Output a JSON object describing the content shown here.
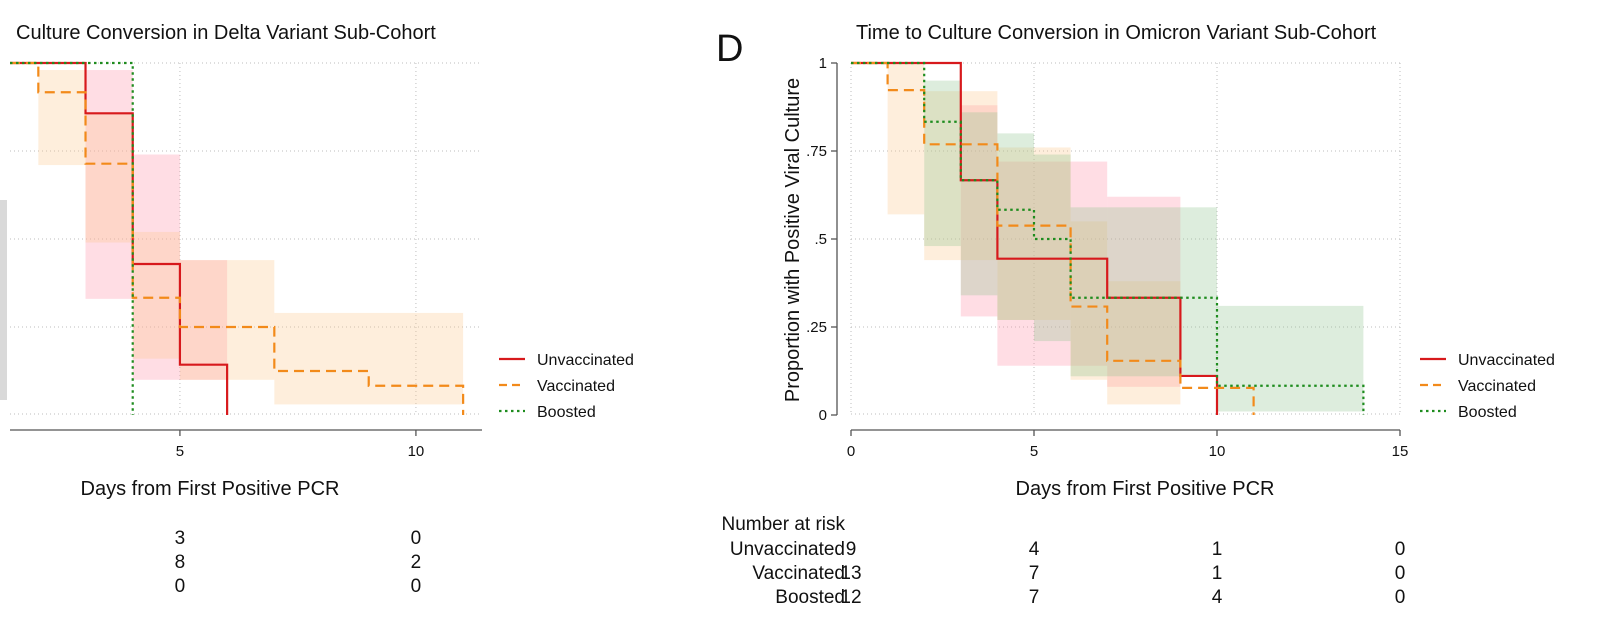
{
  "panel_letter": "D",
  "colors": {
    "unvaccinated": "#d7191c",
    "vaccinated": "#f28a1a",
    "boosted": "#1e8c1e",
    "unvaccinated_ci": "#ff8fa6",
    "vaccinated_ci": "#fbc68c",
    "boosted_ci": "#8fc48f"
  },
  "risk_table": {
    "header": "Number at risk",
    "rows": [
      {
        "name": "Unvaccinated",
        "values": [
          9,
          4,
          1,
          0
        ]
      },
      {
        "name": "Vaccinated",
        "values": [
          13,
          7,
          1,
          0
        ]
      },
      {
        "name": "Boosted",
        "values": [
          12,
          7,
          4,
          0
        ]
      }
    ]
  },
  "left_risk_values": {
    "columns_x": [
      5,
      10
    ],
    "rows": [
      [
        3,
        0
      ],
      [
        8,
        2
      ],
      [
        0,
        0
      ]
    ]
  },
  "chart_data": [
    {
      "type": "line",
      "subtype": "kaplan-meier step",
      "title": "Culture Conversion in Delta Variant Sub-Cohort",
      "xlabel": "Days from First Positive PCR",
      "ylabel": "",
      "xlim": [
        1.4,
        11.4
      ],
      "ylim": [
        0,
        1
      ],
      "xticks": [
        5,
        10
      ],
      "yticks": [],
      "grid": true,
      "legend": "right",
      "series": [
        {
          "name": "Unvaccinated",
          "style": "solid",
          "steps": [
            [
              0,
              1
            ],
            [
              3,
              0.857
            ],
            [
              4,
              0.429
            ],
            [
              5,
              0.143
            ],
            [
              6,
              0
            ]
          ],
          "ci": [
            [
              0,
              1,
              1
            ],
            [
              3,
              0.33,
              0.98
            ],
            [
              4,
              0.1,
              0.74
            ],
            [
              5,
              0.1,
              0.44
            ]
          ]
        },
        {
          "name": "Vaccinated",
          "style": "dashed",
          "steps": [
            [
              0,
              1
            ],
            [
              2,
              0.917
            ],
            [
              3,
              0.714
            ],
            [
              4,
              0.333
            ],
            [
              5,
              0.25
            ],
            [
              7,
              0.125
            ],
            [
              9,
              0.083
            ],
            [
              11,
              0
            ]
          ],
          "ci": [
            [
              0,
              1,
              1
            ],
            [
              2,
              0.71,
              0.98
            ],
            [
              3,
              0.49,
              0.86
            ],
            [
              4,
              0.16,
              0.52
            ],
            [
              5,
              0.1,
              0.44
            ],
            [
              7,
              0.03,
              0.29
            ],
            [
              9,
              0.03,
              0.29
            ]
          ]
        },
        {
          "name": "Boosted",
          "style": "dotted",
          "steps": [
            [
              0,
              1
            ],
            [
              4,
              0
            ]
          ],
          "ci": []
        }
      ]
    },
    {
      "type": "line",
      "subtype": "kaplan-meier step",
      "title": "Time to Culture Conversion in Omicron Variant Sub-Cohort",
      "xlabel": "Days from First Positive PCR",
      "ylabel": "Proportion with Positive Viral Culture",
      "xlim": [
        0,
        15
      ],
      "ylim": [
        0,
        1
      ],
      "xticks": [
        0,
        5,
        10,
        15
      ],
      "yticks": [
        {
          "value": 0,
          "label": "0"
        },
        {
          "value": 0.25,
          "label": ".25"
        },
        {
          "value": 0.5,
          "label": ".5"
        },
        {
          "value": 0.75,
          "label": ".75"
        },
        {
          "value": 1,
          "label": "1"
        }
      ],
      "grid": true,
      "legend": "right",
      "series": [
        {
          "name": "Unvaccinated",
          "style": "solid",
          "steps": [
            [
              0,
              1
            ],
            [
              3,
              0.667
            ],
            [
              4,
              0.444
            ],
            [
              7,
              0.333
            ],
            [
              9,
              0.111
            ],
            [
              10,
              0
            ]
          ],
          "ci": [
            [
              0,
              1,
              1
            ],
            [
              3,
              0.28,
              0.88
            ],
            [
              4,
              0.14,
              0.72
            ],
            [
              7,
              0.08,
              0.62
            ]
          ]
        },
        {
          "name": "Vaccinated",
          "style": "dashed",
          "steps": [
            [
              0,
              1
            ],
            [
              1,
              0.923
            ],
            [
              2,
              0.769
            ],
            [
              4,
              0.538
            ],
            [
              6,
              0.308
            ],
            [
              7,
              0.154
            ],
            [
              9,
              0.077
            ],
            [
              11,
              0
            ]
          ],
          "ci": [
            [
              0,
              1,
              1
            ],
            [
              1,
              0.57,
              1.0
            ],
            [
              2,
              0.44,
              0.92
            ],
            [
              4,
              0.27,
              0.76
            ],
            [
              6,
              0.1,
              0.55
            ],
            [
              7,
              0.03,
              0.38
            ]
          ]
        },
        {
          "name": "Boosted",
          "style": "dotted",
          "steps": [
            [
              0,
              1
            ],
            [
              2,
              0.833
            ],
            [
              3,
              0.667
            ],
            [
              4,
              0.583
            ],
            [
              5,
              0.5
            ],
            [
              6,
              0.333
            ],
            [
              10,
              0.083
            ],
            [
              14,
              0
            ]
          ],
          "ci": [
            [
              0,
              1,
              1
            ],
            [
              2,
              0.48,
              0.95
            ],
            [
              3,
              0.34,
              0.86
            ],
            [
              4,
              0.27,
              0.8
            ],
            [
              5,
              0.21,
              0.74
            ],
            [
              6,
              0.11,
              0.59
            ],
            [
              10,
              0.01,
              0.31
            ]
          ]
        }
      ]
    }
  ]
}
